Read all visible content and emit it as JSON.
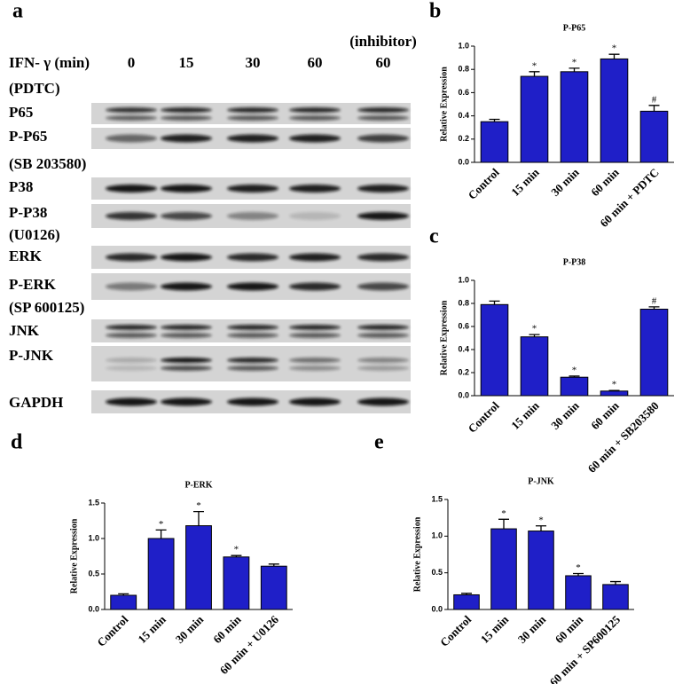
{
  "panel_labels": [
    "a",
    "b",
    "c",
    "d",
    "e"
  ],
  "blot": {
    "treatment_label": "IFN- γ (min)",
    "lanes": [
      "0",
      "15",
      "30",
      "60",
      "60"
    ],
    "inhibitor_label": "(inhibitor)",
    "rows": [
      "(PDTC)",
      "P65",
      "P-P65",
      "(SB 203580)",
      "P38",
      "P-P38",
      "(U0126)",
      "ERK",
      "P-ERK",
      "(SP 600125)",
      "JNK",
      "P-JNK",
      "GAPDH"
    ]
  },
  "chart_data": [
    {
      "type": "bar",
      "title": "P-P65",
      "y_label": "Relative Expression",
      "categories": [
        "Control",
        "15 min",
        "30 min",
        "60 min",
        "60 min + PDTC"
      ],
      "values": [
        0.35,
        0.74,
        0.78,
        0.89,
        0.44
      ],
      "errors": [
        0.02,
        0.04,
        0.03,
        0.04,
        0.05
      ],
      "annotations": [
        null,
        "*",
        "*",
        "*",
        "#"
      ],
      "color": "#1f1fc8",
      "ylim": [
        0,
        1
      ],
      "yticks": [
        {
          "value": 0,
          "label": "0.0"
        },
        0.2,
        0.4,
        0.6,
        0.8,
        {
          "value": 1,
          "label": "1.0"
        }
      ]
    },
    {
      "type": "bar",
      "title": "P-P38",
      "y_label": "Relative Expression",
      "categories": [
        "Control",
        "15 min",
        "30 min",
        "60 min",
        "60 min + SB203580"
      ],
      "values": [
        0.79,
        0.51,
        0.16,
        0.04,
        0.75
      ],
      "errors": [
        0.03,
        0.02,
        0.01,
        0.005,
        0.02
      ],
      "annotations": [
        null,
        "*",
        "*",
        "*",
        "#"
      ],
      "color": "#1f1fc8",
      "ylim": [
        0,
        1
      ],
      "yticks": [
        {
          "value": 0,
          "label": "0.0"
        },
        0.2,
        0.4,
        0.6,
        0.8,
        {
          "value": 1,
          "label": "1.0"
        }
      ]
    },
    {
      "type": "bar",
      "title": "P-ERK",
      "y_label": "Relative Expression",
      "categories": [
        "Control",
        "15 min",
        "30 min",
        "60 min",
        "60 min + U0126"
      ],
      "values": [
        0.2,
        1.0,
        1.18,
        0.74,
        0.61
      ],
      "errors": [
        0.02,
        0.12,
        0.2,
        0.02,
        0.03
      ],
      "annotations": [
        null,
        "*",
        "*",
        "*",
        null
      ],
      "color": "#1f1fc8",
      "ylim": [
        0,
        1.5
      ],
      "yticks": [
        {
          "value": 0,
          "label": "0.0"
        },
        0.5,
        {
          "value": 1,
          "label": "1.0"
        },
        1.5
      ]
    },
    {
      "type": "bar",
      "title": "P-JNK",
      "y_label": "Relative Expression",
      "categories": [
        "Control",
        "15 min",
        "30 min",
        "60 min",
        "60 min + SP600125"
      ],
      "values": [
        0.2,
        1.1,
        1.07,
        0.46,
        0.34
      ],
      "errors": [
        0.02,
        0.13,
        0.07,
        0.03,
        0.04
      ],
      "annotations": [
        null,
        "*",
        "*",
        "*",
        null
      ],
      "color": "#1f1fc8",
      "ylim": [
        0,
        1.5
      ],
      "yticks": [
        {
          "value": 0,
          "label": "0.0"
        },
        0.5,
        {
          "value": 1,
          "label": "1.0"
        },
        1.5
      ]
    }
  ]
}
